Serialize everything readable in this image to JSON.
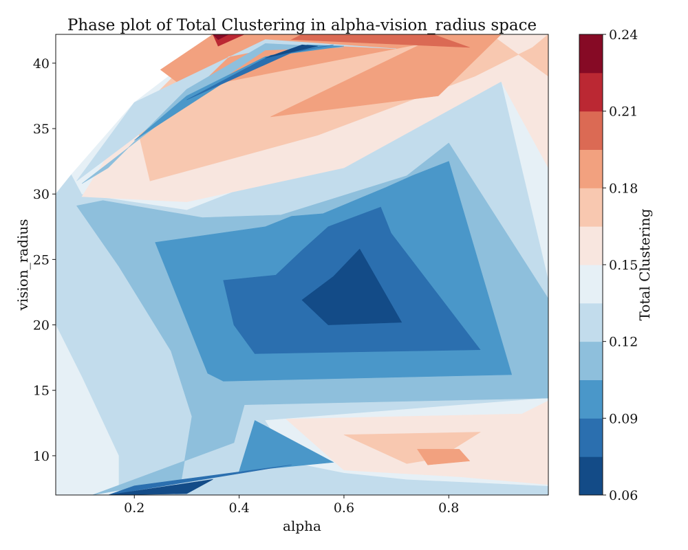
{
  "chart_data": {
    "type": "contour",
    "title": "Phase plot of Total Clustering in alpha-vision_radius space",
    "xlabel": "alpha",
    "ylabel": "vision_radius",
    "xlim": [
      0.05,
      0.99
    ],
    "ylim": [
      7,
      42.2
    ],
    "xticks": [
      "0.2",
      "0.4",
      "0.6",
      "0.8"
    ],
    "xtick_values": [
      0.2,
      0.4,
      0.6,
      0.8
    ],
    "yticks": [
      "10",
      "15",
      "20",
      "25",
      "30",
      "35",
      "40"
    ],
    "ytick_values": [
      10,
      15,
      20,
      25,
      30,
      35,
      40
    ],
    "grid": false,
    "colorbar": {
      "label": "Total Clustering",
      "range": [
        0.06,
        0.24
      ],
      "ticks": [
        "0.06",
        "0.09",
        "0.12",
        "0.15",
        "0.18",
        "0.21",
        "0.24"
      ],
      "tick_values": [
        0.06,
        0.09,
        0.12,
        0.15,
        0.18,
        0.21,
        0.24
      ],
      "levels": [
        0.06,
        0.075,
        0.09,
        0.105,
        0.12,
        0.135,
        0.15,
        0.165,
        0.18,
        0.195,
        0.21,
        0.225,
        0.24
      ],
      "colors": [
        "#134b87",
        "#2b6faf",
        "#4a97c9",
        "#8ebfdc",
        "#c2dcec",
        "#e6f0f6",
        "#f8e6df",
        "#f8c8b0",
        "#f2a17f",
        "#db6a54",
        "#bb2833",
        "#860a25"
      ]
    },
    "regions": [
      {
        "level": 4,
        "points": [
          [
            0.05,
            7
          ],
          [
            0.05,
            30
          ],
          [
            0.08,
            31.5
          ],
          [
            0.25,
            36
          ],
          [
            0.45,
            42.2
          ],
          [
            0.99,
            42.2
          ],
          [
            0.99,
            7
          ]
        ]
      },
      {
        "level": 5,
        "points": [
          [
            0.05,
            7
          ],
          [
            0.05,
            20
          ],
          [
            0.1,
            16
          ],
          [
            0.17,
            10
          ],
          [
            0.17,
            7
          ]
        ]
      },
      {
        "level": 5,
        "points": [
          [
            0.37,
            42.2
          ],
          [
            0.99,
            42.2
          ],
          [
            0.99,
            23.5
          ],
          [
            0.9,
            38.7
          ],
          [
            0.6,
            33.5
          ],
          [
            0.3,
            28.8
          ],
          [
            0.1,
            30
          ],
          [
            0.08,
            31.5
          ],
          [
            0.2,
            37
          ]
        ]
      },
      {
        "level": 5,
        "points": [
          [
            0.45,
            12.7
          ],
          [
            0.99,
            14.4
          ],
          [
            0.99,
            7.7
          ],
          [
            0.72,
            8.2
          ],
          [
            0.6,
            8.7
          ],
          [
            0.5,
            9.5
          ]
        ]
      },
      {
        "level": 3,
        "points": [
          [
            0.12,
            7
          ],
          [
            0.29,
            8.2
          ],
          [
            0.31,
            13
          ],
          [
            0.27,
            18
          ],
          [
            0.17,
            24.5
          ],
          [
            0.09,
            29.1
          ],
          [
            0.14,
            29.5
          ],
          [
            0.33,
            28.2
          ],
          [
            0.48,
            28.4
          ],
          [
            0.72,
            31.4
          ],
          [
            0.8,
            33.9
          ],
          [
            0.99,
            22
          ],
          [
            0.99,
            14.4
          ],
          [
            0.41,
            13.9
          ],
          [
            0.39,
            11
          ]
        ]
      },
      {
        "level": 6,
        "points": [
          [
            0.1,
            29.8
          ],
          [
            0.3,
            29.4
          ],
          [
            0.6,
            32
          ],
          [
            0.9,
            38.6
          ],
          [
            0.99,
            32
          ],
          [
            0.99,
            42.2
          ],
          [
            0.4,
            42.2
          ],
          [
            0.3,
            40
          ],
          [
            0.15,
            33
          ]
        ]
      },
      {
        "level": 6,
        "points": [
          [
            0.49,
            12.8
          ],
          [
            0.94,
            13.2
          ],
          [
            0.99,
            14.2
          ],
          [
            0.99,
            7.8
          ],
          [
            0.82,
            8.4
          ],
          [
            0.6,
            8.9
          ]
        ]
      },
      {
        "level": 7,
        "points": [
          [
            0.23,
            31
          ],
          [
            0.55,
            34.5
          ],
          [
            0.85,
            39
          ],
          [
            0.96,
            41.2
          ],
          [
            0.99,
            42.2
          ],
          [
            0.99,
            39
          ],
          [
            0.88,
            42.2
          ],
          [
            0.37,
            42.2
          ],
          [
            0.3,
            40
          ],
          [
            0.2,
            36
          ]
        ]
      },
      {
        "level": 7,
        "points": [
          [
            0.6,
            11.6
          ],
          [
            0.86,
            11.8
          ],
          [
            0.78,
            9.8
          ],
          [
            0.72,
            9.4
          ]
        ]
      },
      {
        "level": 8,
        "points": [
          [
            0.46,
            35.9
          ],
          [
            0.78,
            37.5
          ],
          [
            0.9,
            42.2
          ],
          [
            0.35,
            42.2
          ],
          [
            0.25,
            39.5
          ],
          [
            0.3,
            38
          ],
          [
            0.75,
            41.5
          ]
        ]
      },
      {
        "level": 8,
        "points": [
          [
            0.74,
            10.5
          ],
          [
            0.82,
            10.5
          ],
          [
            0.84,
            9.6
          ],
          [
            0.76,
            9.3
          ]
        ]
      },
      {
        "level": 9,
        "points": [
          [
            0.5,
            41.8
          ],
          [
            0.84,
            41.2
          ],
          [
            0.77,
            42.2
          ],
          [
            0.52,
            42.2
          ]
        ]
      },
      {
        "level": 10,
        "points": [
          [
            0.35,
            42.2
          ],
          [
            0.41,
            42.2
          ],
          [
            0.36,
            41.3
          ]
        ]
      },
      {
        "level": 11,
        "points": [
          [
            0.35,
            42.2
          ],
          [
            0.38,
            42.2
          ],
          [
            0.36,
            41.8
          ]
        ]
      },
      {
        "level": 4,
        "points": [
          [
            0.09,
            31
          ],
          [
            0.29,
            37
          ],
          [
            0.38,
            40.5
          ],
          [
            0.47,
            41.2
          ],
          [
            0.6,
            41.3
          ],
          [
            0.7,
            41.1
          ],
          [
            0.45,
            41.8
          ],
          [
            0.2,
            37
          ]
        ]
      },
      {
        "level": 3,
        "points": [
          [
            0.1,
            30.8
          ],
          [
            0.3,
            37
          ],
          [
            0.45,
            41
          ],
          [
            0.6,
            41.2
          ],
          [
            0.45,
            41.5
          ],
          [
            0.3,
            38
          ],
          [
            0.15,
            32
          ]
        ]
      },
      {
        "level": 2,
        "points": [
          [
            0.2,
            34.1
          ],
          [
            0.42,
            39.8
          ],
          [
            0.53,
            41.4
          ],
          [
            0.6,
            41.3
          ],
          [
            0.45,
            40.5
          ],
          [
            0.3,
            37.5
          ]
        ]
      },
      {
        "level": 1,
        "points": [
          [
            0.3,
            37.2
          ],
          [
            0.46,
            40.6
          ],
          [
            0.58,
            41.4
          ],
          [
            0.5,
            40.8
          ],
          [
            0.4,
            39
          ]
        ]
      },
      {
        "level": 0,
        "points": [
          [
            0.45,
            40.4
          ],
          [
            0.52,
            41.4
          ],
          [
            0.55,
            41.3
          ]
        ]
      },
      {
        "level": 2,
        "points": [
          [
            0.24,
            26.3
          ],
          [
            0.45,
            27.5
          ],
          [
            0.5,
            28.3
          ],
          [
            0.56,
            28.5
          ],
          [
            0.68,
            30.5
          ],
          [
            0.73,
            31.4
          ],
          [
            0.8,
            32.5
          ],
          [
            0.92,
            16.2
          ],
          [
            0.37,
            15.7
          ],
          [
            0.34,
            16.3
          ]
        ]
      },
      {
        "level": 1,
        "points": [
          [
            0.37,
            23.4
          ],
          [
            0.47,
            23.8
          ],
          [
            0.52,
            25.7
          ],
          [
            0.57,
            27.5
          ],
          [
            0.67,
            29
          ],
          [
            0.69,
            27
          ],
          [
            0.86,
            18.1
          ],
          [
            0.43,
            17.8
          ],
          [
            0.39,
            20
          ]
        ]
      },
      {
        "level": 0,
        "points": [
          [
            0.52,
            21.9
          ],
          [
            0.58,
            23.7
          ],
          [
            0.63,
            25.8
          ],
          [
            0.71,
            20.2
          ],
          [
            0.57,
            20
          ]
        ]
      },
      {
        "level": 2,
        "points": [
          [
            0.4,
            8.8
          ],
          [
            0.43,
            12.7
          ],
          [
            0.58,
            9.5
          ]
        ]
      },
      {
        "level": 1,
        "points": [
          [
            0.15,
            7
          ],
          [
            0.5,
            9.3
          ],
          [
            0.2,
            7.7
          ]
        ]
      },
      {
        "level": 0,
        "points": [
          [
            0.15,
            7
          ],
          [
            0.35,
            8.2
          ],
          [
            0.3,
            7.1
          ]
        ]
      }
    ]
  }
}
